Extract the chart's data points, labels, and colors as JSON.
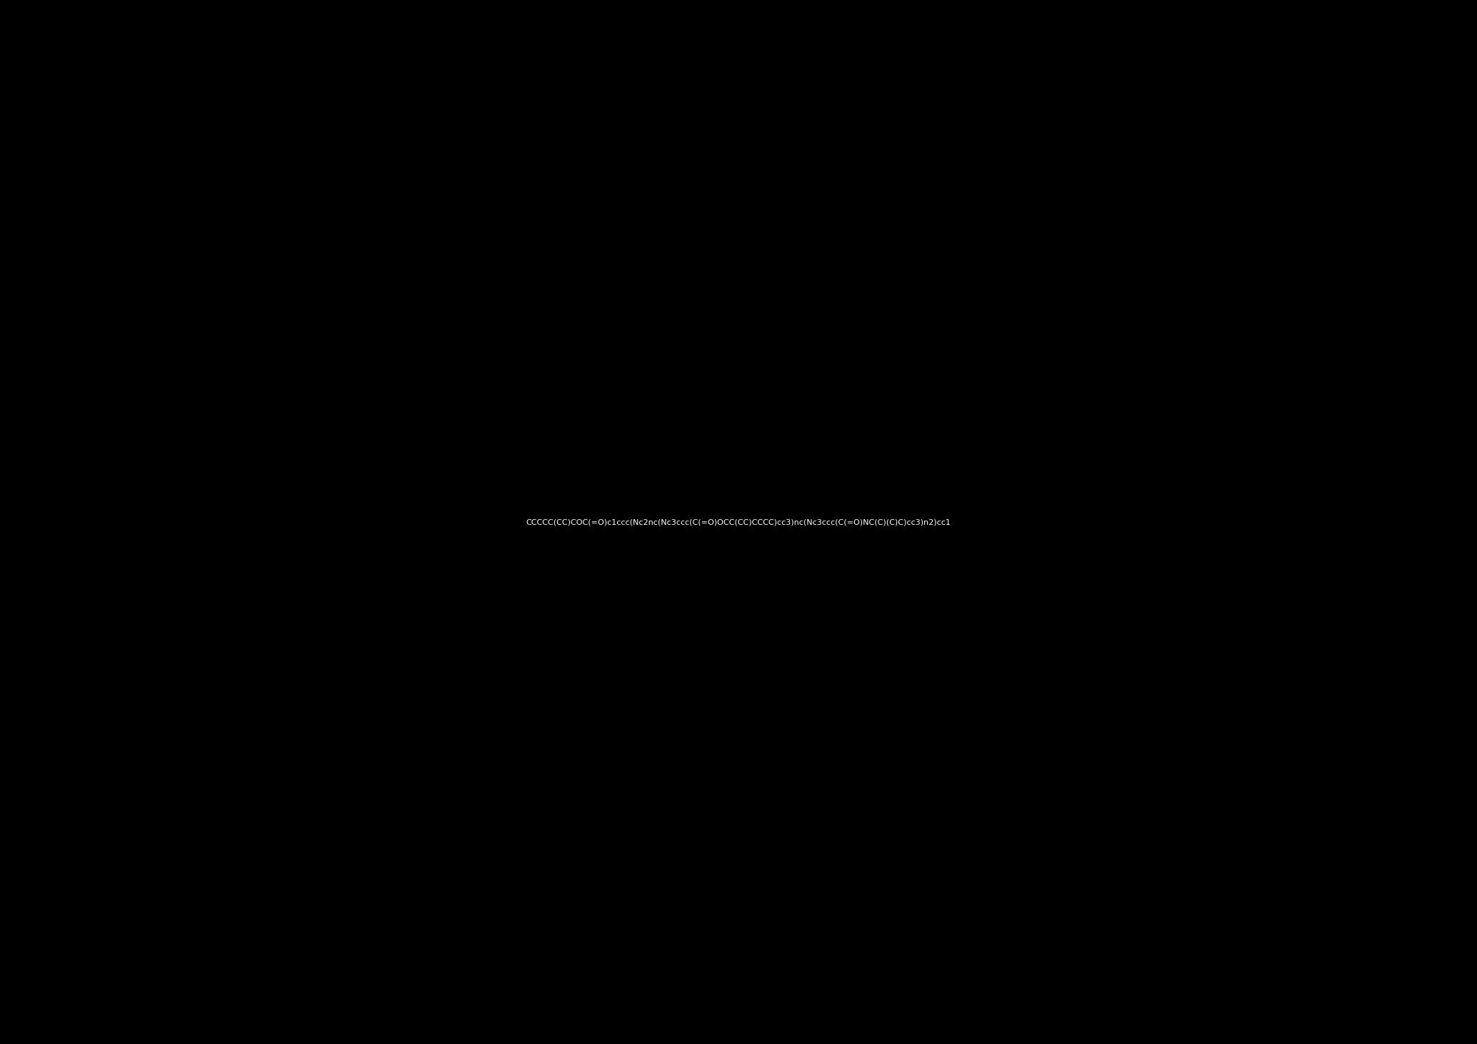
{
  "smiles": "CCCCC(CC)COC(=O)c1ccc(Nc2nc(Nc3ccc(C(=O)OCC(CC)CCCC)cc3)nc(Nc3ccc(C(=O)NC(C)(C)C)cc3)n2)cc1",
  "background_color": "#000000",
  "figure_width": 20.68,
  "figure_height": 14.62,
  "dpi": 100
}
